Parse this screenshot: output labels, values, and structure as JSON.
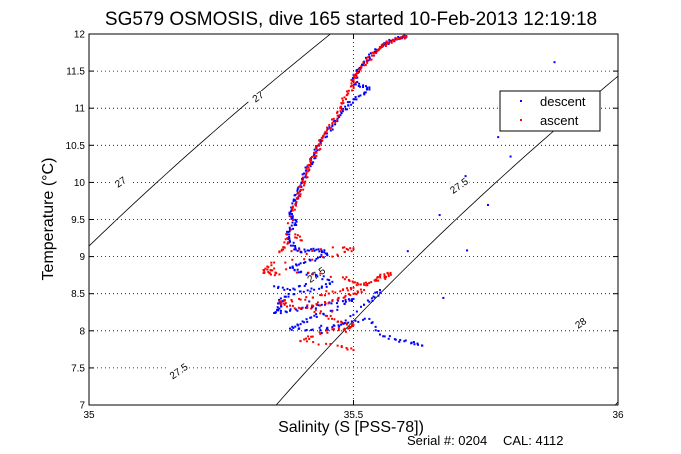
{
  "chart_data": {
    "type": "scatter",
    "title": "SG579 OSMOSIS, dive 165 started 10-Feb-2013 12:19:18",
    "xlabel": "Salinity (S [PSS-78])",
    "ylabel": "Temperature (°C)",
    "xlim": [
      35,
      36
    ],
    "ylim": [
      7,
      12
    ],
    "x_ticks": [
      35,
      35.5,
      36
    ],
    "x_tick_labels": [
      "35",
      "35.5",
      "36"
    ],
    "y_ticks": [
      7,
      7.5,
      8,
      8.5,
      9,
      9.5,
      10,
      10.5,
      11,
      11.5,
      12
    ],
    "y_tick_labels": [
      "7",
      "7.5",
      "8",
      "8.5",
      "9",
      "9.5",
      "10",
      "10.5",
      "11",
      "11.5",
      "12"
    ],
    "grid": true,
    "legend_position": "upper-right",
    "series": [
      {
        "name": "descent",
        "color": "#0000ff",
        "points": [
          [
            35.6,
            11.97
          ],
          [
            35.59,
            11.95
          ],
          [
            35.58,
            11.93
          ],
          [
            35.57,
            11.9
          ],
          [
            35.56,
            11.87
          ],
          [
            35.55,
            11.82
          ],
          [
            35.54,
            11.76
          ],
          [
            35.53,
            11.69
          ],
          [
            35.52,
            11.61
          ],
          [
            35.51,
            11.53
          ],
          [
            35.505,
            11.45
          ],
          [
            35.5,
            11.37
          ],
          [
            35.51,
            11.3
          ],
          [
            35.53,
            11.28
          ],
          [
            35.52,
            11.2
          ],
          [
            35.5,
            11.12
          ],
          [
            35.49,
            11.04
          ],
          [
            35.48,
            10.96
          ],
          [
            35.47,
            10.86
          ],
          [
            35.46,
            10.76
          ],
          [
            35.45,
            10.66
          ],
          [
            35.44,
            10.56
          ],
          [
            35.43,
            10.46
          ],
          [
            35.425,
            10.36
          ],
          [
            35.42,
            10.26
          ],
          [
            35.41,
            10.16
          ],
          [
            35.405,
            10.06
          ],
          [
            35.4,
            9.96
          ],
          [
            35.395,
            9.86
          ],
          [
            35.39,
            9.76
          ],
          [
            35.385,
            9.66
          ],
          [
            35.38,
            9.58
          ],
          [
            35.385,
            9.52
          ],
          [
            35.39,
            9.45
          ],
          [
            35.38,
            9.37
          ],
          [
            35.375,
            9.3
          ],
          [
            35.38,
            9.2
          ],
          [
            35.39,
            9.12
          ],
          [
            35.4,
            9.06
          ],
          [
            35.42,
            9.1
          ],
          [
            35.44,
            9.08
          ],
          [
            35.45,
            9.03
          ],
          [
            35.43,
            8.97
          ],
          [
            35.4,
            8.91
          ],
          [
            35.38,
            8.85
          ],
          [
            35.4,
            8.79
          ],
          [
            35.43,
            8.75
          ],
          [
            35.46,
            8.66
          ],
          [
            35.44,
            8.58
          ],
          [
            35.4,
            8.53
          ],
          [
            35.37,
            8.46
          ],
          [
            35.36,
            8.38
          ],
          [
            35.36,
            8.3
          ],
          [
            35.35,
            8.24
          ],
          [
            35.38,
            8.27
          ],
          [
            35.41,
            8.31
          ],
          [
            35.44,
            8.35
          ],
          [
            35.48,
            8.4
          ],
          [
            35.5,
            8.43
          ],
          [
            35.46,
            8.27
          ],
          [
            35.42,
            8.18
          ],
          [
            35.4,
            8.09
          ],
          [
            35.38,
            8.03
          ],
          [
            35.42,
            8.01
          ],
          [
            35.46,
            8.05
          ],
          [
            35.49,
            8.11
          ],
          [
            35.53,
            8.16
          ],
          [
            35.55,
            7.95
          ],
          [
            35.58,
            7.88
          ],
          [
            35.61,
            7.84
          ],
          [
            35.63,
            7.8
          ],
          [
            35.88,
            11.62
          ],
          [
            35.55,
            8.55
          ],
          [
            35.54,
            8.45
          ],
          [
            35.52,
            8.35
          ],
          [
            35.48,
            8.1
          ],
          [
            35.44,
            7.97
          ],
          [
            35.41,
            8.63
          ],
          [
            35.38,
            8.55
          ],
          [
            35.35,
            8.6
          ]
        ]
      },
      {
        "name": "ascent",
        "color": "#ff0000",
        "points": [
          [
            35.6,
            11.96
          ],
          [
            35.585,
            11.94
          ],
          [
            35.575,
            11.91
          ],
          [
            35.565,
            11.88
          ],
          [
            35.555,
            11.84
          ],
          [
            35.545,
            11.78
          ],
          [
            35.535,
            11.71
          ],
          [
            35.525,
            11.63
          ],
          [
            35.515,
            11.55
          ],
          [
            35.505,
            11.46
          ],
          [
            35.5,
            11.38
          ],
          [
            35.5,
            11.3
          ],
          [
            35.49,
            11.2
          ],
          [
            35.48,
            11.1
          ],
          [
            35.475,
            11.0
          ],
          [
            35.47,
            10.9
          ],
          [
            35.46,
            10.8
          ],
          [
            35.45,
            10.7
          ],
          [
            35.44,
            10.6
          ],
          [
            35.435,
            10.5
          ],
          [
            35.43,
            10.4
          ],
          [
            35.42,
            10.3
          ],
          [
            35.415,
            10.2
          ],
          [
            35.41,
            10.1
          ],
          [
            35.405,
            10.0
          ],
          [
            35.4,
            9.9
          ],
          [
            35.395,
            9.8
          ],
          [
            35.39,
            9.7
          ],
          [
            35.385,
            9.62
          ],
          [
            35.375,
            9.25
          ],
          [
            35.37,
            9.12
          ],
          [
            35.36,
            9.06
          ],
          [
            35.48,
            9.12
          ],
          [
            35.5,
            9.1
          ],
          [
            35.46,
            9.0
          ],
          [
            35.35,
            8.92
          ],
          [
            35.33,
            8.82
          ],
          [
            35.36,
            8.76
          ],
          [
            35.33,
            8.78
          ],
          [
            35.35,
            8.84
          ],
          [
            35.48,
            8.72
          ],
          [
            35.5,
            8.65
          ],
          [
            35.52,
            8.62
          ],
          [
            35.54,
            8.68
          ],
          [
            35.55,
            8.74
          ],
          [
            35.57,
            8.78
          ],
          [
            35.56,
            8.7
          ],
          [
            35.5,
            8.58
          ],
          [
            35.48,
            8.55
          ],
          [
            35.44,
            8.48
          ],
          [
            35.4,
            8.42
          ],
          [
            35.36,
            8.4
          ],
          [
            35.37,
            8.35
          ],
          [
            35.4,
            8.3
          ],
          [
            35.43,
            8.36
          ],
          [
            35.47,
            8.42
          ],
          [
            35.5,
            8.5
          ],
          [
            35.52,
            8.55
          ],
          [
            35.42,
            8.3
          ],
          [
            35.45,
            8.2
          ],
          [
            35.47,
            8.12
          ],
          [
            35.5,
            8.08
          ],
          [
            35.49,
            8.03
          ],
          [
            35.46,
            8.02
          ],
          [
            35.42,
            7.92
          ],
          [
            35.4,
            7.86
          ],
          [
            35.47,
            7.8
          ],
          [
            35.5,
            7.74
          ],
          [
            35.39,
            9.3
          ],
          [
            35.4,
            9.22
          ]
        ]
      }
    ],
    "contours": [
      {
        "label": "27",
        "label_positions": [
          [
            35.32,
            11.15
          ],
          [
            35.06,
            10.0
          ]
        ]
      },
      {
        "label": "27.5",
        "label_positions": [
          [
            35.7,
            9.95
          ],
          [
            35.43,
            8.75
          ],
          [
            35.17,
            7.45
          ]
        ]
      },
      {
        "label": "28",
        "label_positions": [
          [
            35.93,
            8.1
          ]
        ]
      }
    ]
  },
  "footer": {
    "serial": "Serial #: 0204",
    "cal": "CAL: 4112"
  }
}
